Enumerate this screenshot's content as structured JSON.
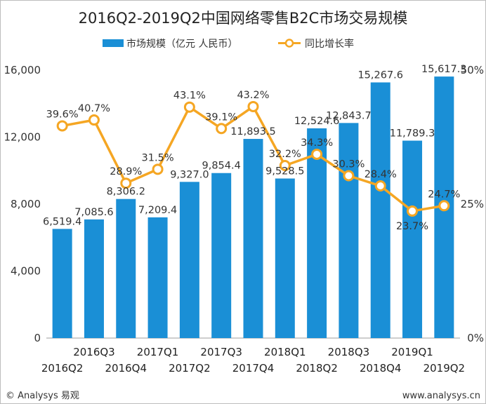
{
  "chart_data": {
    "type": "bar",
    "title": "2016Q2-2019Q2中国网络零售B2C市场交易规模",
    "categories": [
      "2016Q2",
      "2016Q3",
      "2016Q4",
      "2017Q1",
      "2017Q2",
      "2017Q3",
      "2017Q4",
      "2018Q1",
      "2018Q2",
      "2018Q3",
      "2018Q4",
      "2019Q1",
      "2019Q2"
    ],
    "series": [
      {
        "name": "市场规模（亿元 人民币）",
        "type": "bar",
        "axis": "left",
        "color": "#1a8fd6",
        "values": [
          6519.4,
          7085.6,
          8306.2,
          7209.4,
          9327.0,
          9854.4,
          11893.5,
          9528.5,
          12524.6,
          12843.7,
          15267.6,
          11789.3,
          15617.3
        ],
        "labels": [
          "6,519.4",
          "7,085.6",
          "8,306.2",
          "7,209.4",
          "9,327.0",
          "9,854.4",
          "11,893.5",
          "9,528.5",
          "12,524.6",
          "12,843.7",
          "15,267.6",
          "11,789.3",
          "15,617.3"
        ]
      },
      {
        "name": "同比增长率",
        "type": "line",
        "axis": "right",
        "color": "#f5a623",
        "values": [
          39.6,
          40.7,
          28.9,
          31.5,
          43.1,
          39.1,
          43.2,
          32.2,
          34.3,
          30.3,
          28.4,
          23.7,
          24.7
        ],
        "labels": [
          "39.6%",
          "40.7%",
          "28.9%",
          "31.5%",
          "43.1%",
          "39.1%",
          "43.2%",
          "32.2%",
          "34.3%",
          "30.3%",
          "28.4%",
          "23.7%",
          "24.7%"
        ]
      }
    ],
    "y_left": {
      "ylim": [
        0,
        16000
      ],
      "ticks": [
        0,
        4000,
        8000,
        12000,
        16000
      ],
      "tick_labels": [
        "0",
        "4,000",
        "8,000",
        "12,000",
        "16,000"
      ]
    },
    "y_right": {
      "ylim": [
        0,
        50
      ],
      "ticks": [
        0,
        25,
        50
      ],
      "tick_labels": [
        "0%",
        "25%",
        "50%"
      ]
    },
    "grid": false,
    "legend_position": "top-center"
  },
  "footer": {
    "left": "© Analysys 易观",
    "right": "www.analysys.cn"
  }
}
